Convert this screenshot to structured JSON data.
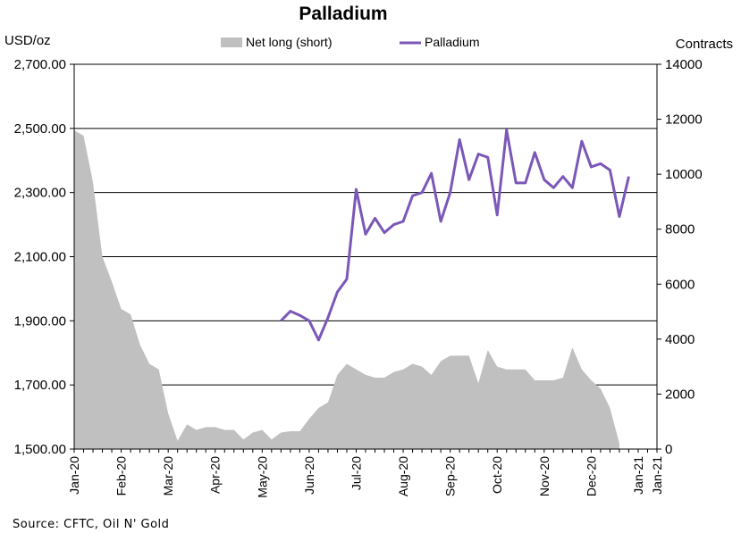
{
  "chart_data": {
    "type": "area+line",
    "title": "Palladium",
    "ylabel_left": "USD/oz",
    "ylabel_right": "Contracts",
    "source": "Source: CFTC, Oil N' Gold",
    "legend": [
      {
        "name": "Net long (short)",
        "type": "area",
        "color": "#c0c0c0"
      },
      {
        "name": "Palladium",
        "type": "line",
        "color": "#7b58b8"
      }
    ],
    "legend_position": "top",
    "grid": true,
    "y_left": {
      "range": [
        1500,
        2700
      ],
      "ticks": [
        "1,500.00",
        "1,700.00",
        "1,900.00",
        "2,100.00",
        "2,300.00",
        "2,500.00",
        "2,700.00"
      ]
    },
    "y_right": {
      "range": [
        0,
        14000
      ],
      "ticks": [
        "0",
        "2000",
        "4000",
        "6000",
        "8000",
        "10000",
        "12000",
        "14000"
      ]
    },
    "x_labels": [
      "Jan-20",
      "Feb-20",
      "Mar-20",
      "Apr-20",
      "May-20",
      "Jun-20",
      "Jul-20",
      "Aug-20",
      "Sep-20",
      "Oct-20",
      "Nov-20",
      "Dec-20",
      "Jan-21",
      "Jan-21"
    ],
    "x_count": 63,
    "x_label_indices": [
      0,
      5,
      10,
      15,
      20,
      25,
      30,
      35,
      40,
      45,
      50,
      55,
      60,
      62
    ],
    "series": [
      {
        "name": "Net long (short)",
        "axis": "right",
        "values": [
          11600,
          11400,
          9700,
          7000,
          6100,
          5100,
          4900,
          3800,
          3100,
          2900,
          1300,
          300,
          900,
          700,
          800,
          800,
          700,
          700,
          350,
          600,
          700,
          350,
          600,
          650,
          650,
          1100,
          1500,
          1700,
          2700,
          3100,
          2900,
          2700,
          2600,
          2600,
          2800,
          2900,
          3100,
          3000,
          2700,
          3200,
          3400,
          3400,
          3400,
          2400,
          3600,
          3000,
          2900,
          2900,
          2900,
          2500,
          2500,
          2500,
          2600,
          3700,
          2900,
          2500,
          2200,
          1500,
          200
        ]
      },
      {
        "name": "Palladium",
        "axis": "left",
        "start_index": 22,
        "values": [
          1900,
          1930,
          1917,
          1900,
          1840,
          1910,
          1990,
          2030,
          2310,
          2170,
          2220,
          2175,
          2200,
          2210,
          2290,
          2300,
          2360,
          2210,
          2300,
          2465,
          2340,
          2420,
          2410,
          2230,
          2495,
          2330,
          2330,
          2425,
          2340,
          2315,
          2350,
          2315,
          2460,
          2380,
          2390,
          2370,
          2225,
          2350
        ]
      }
    ]
  }
}
